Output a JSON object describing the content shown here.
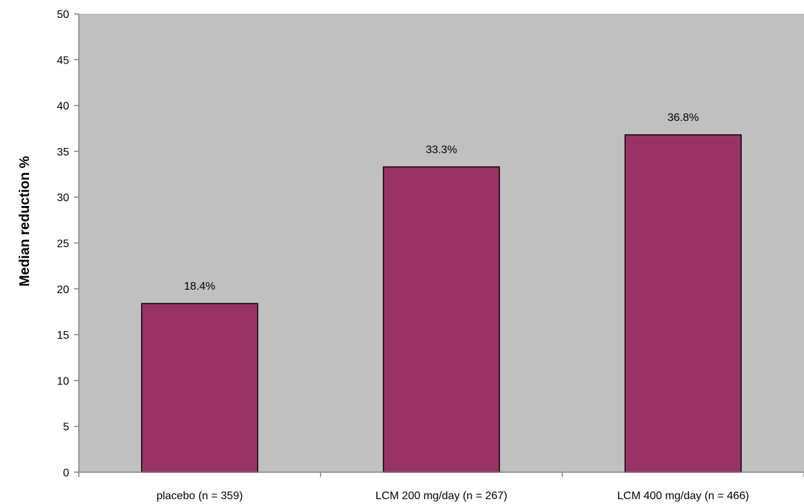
{
  "chart_data": {
    "type": "bar",
    "categories": [
      "placebo (n = 359)",
      "LCM 200 mg/day (n = 267)",
      "LCM 400 mg/day (n = 466)"
    ],
    "values": [
      18.4,
      33.3,
      36.8
    ],
    "data_labels": [
      "18.4%",
      "33.3%",
      "36.8%"
    ],
    "title": "",
    "xlabel": "",
    "ylabel": "Median reduction %",
    "ylim": [
      0,
      50
    ],
    "yticks": [
      0,
      5,
      10,
      15,
      20,
      25,
      30,
      35,
      40,
      45,
      50
    ],
    "grid": false,
    "legend": "none",
    "colors": {
      "bar": "#993366",
      "bar_border": "#000000",
      "plot_background": "#c0c0c0",
      "axis": "#808080"
    }
  }
}
